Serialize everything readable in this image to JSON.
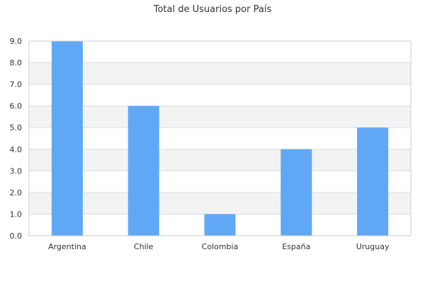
{
  "chart_data": {
    "type": "bar",
    "title": "Total de Usuarios por País",
    "xlabel": "",
    "ylabel": "",
    "categories": [
      "Argentina",
      "Chile",
      "Colombia",
      "España",
      "Uruguay"
    ],
    "values": [
      9,
      6,
      1,
      4,
      5
    ],
    "ylim": [
      0,
      9
    ],
    "yticks": [
      "0.0",
      "1.0",
      "2.0",
      "3.0",
      "4.0",
      "5.0",
      "6.0",
      "7.0",
      "8.0",
      "9.0"
    ],
    "grid": true,
    "legend": "none",
    "colors": {
      "bar": "#60a8f6",
      "band": "#f3f3f3",
      "gridline": "#dddddd",
      "axis": "#cccccc",
      "text": "#333333"
    }
  }
}
